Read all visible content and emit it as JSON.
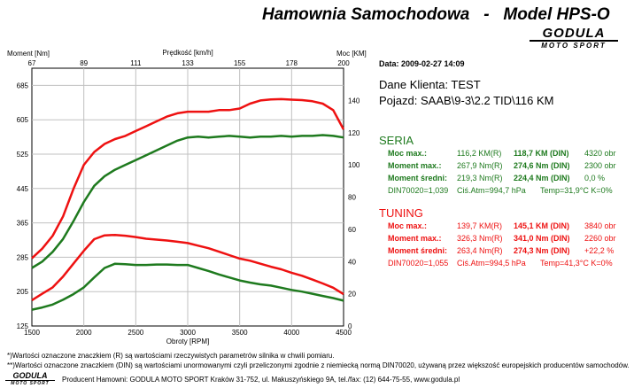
{
  "header": {
    "title": "Hamownia Samochodowa   -   Model HPS-O",
    "logo_main": "GODULA",
    "logo_sub": "MOTO SPORT"
  },
  "info": {
    "date": "Data: 2009-02-27  14:09",
    "client": "Dane Klienta: TEST",
    "vehicle": "Pojazd: SAAB\\9-3\\2.2 TID\\116 KM"
  },
  "colors": {
    "seria": "#1e7a1e",
    "tuning": "#ee1111",
    "grid": "#c0c0c0"
  },
  "seria": {
    "title": "SERIA",
    "rows": [
      {
        "label": "Moc max.:",
        "v1": "116,2 KM(R)",
        "v2": "118,7 KM (DIN)",
        "v3": "4320 obr"
      },
      {
        "label": "Moment max.:",
        "v1": "267,9 Nm(R)",
        "v2": "274,6 Nm (DIN)",
        "v3": "2300 obr"
      },
      {
        "label": "Moment średni:",
        "v1": "219,3 Nm(R)",
        "v2": "224,4 Nm (DIN)",
        "v3": "0,0 %"
      }
    ],
    "din_line": {
      "din": "DIN70020=1,039",
      "atm": "Ciś.Atm=994,7 hPa",
      "temp": "Temp=31,9°C  K=0%"
    }
  },
  "tuning": {
    "title": "TUNING",
    "rows": [
      {
        "label": "Moc max.:",
        "v1": "139,7 KM(R)",
        "v2": "145,1 KM (DIN)",
        "v3": "3840 obr"
      },
      {
        "label": "Moment max.:",
        "v1": "326,3 Nm(R)",
        "v2": "341,0 Nm (DIN)",
        "v3": "2260 obr"
      },
      {
        "label": "Moment średni:",
        "v1": "263,4 Nm(R)",
        "v2": "274,3 Nm (DIN)",
        "v3": "+22,2 %"
      }
    ],
    "din_line": {
      "din": "DIN70020=1,055",
      "atm": "Ciś.Atm=994,5 hPa",
      "temp": "Temp=41,3°C  K=0%"
    }
  },
  "notes": {
    "line1": "*)Wartości oznaczone znaczkiem (R) są wartościami rzeczywistych parametrów silnika w chwili pomiaru.",
    "line2": "**)Wartości oznaczone znaczkiem (DIN) są wartościami unormowanymi czyli przeliczonymi zgodnie z niemiecką normą DIN70020, używaną przez większość europejskich producentów samochodów."
  },
  "footer": {
    "logo_main": "GODULA",
    "logo_sub": "MOTO SPORT",
    "text": "Producent Hamowni: GODULA MOTO SPORT Kraków 31-752, ul. Makuszyńskiego 9A, tel./fax: (12) 644-75-55, www.godula.pl"
  },
  "chart_data": {
    "type": "line",
    "left_axis_title": "Moment [Nm]",
    "right_axis_title": "Moc [KM]",
    "top_axis_title": "Prędkość [km/h]",
    "bottom_axis_title": "Obroty [RPM]",
    "xlim": [
      1500,
      4500
    ],
    "ylim_left": [
      125,
      725
    ],
    "ylim_right": [
      0,
      160
    ],
    "x_ticks": [
      1500,
      2000,
      2500,
      3000,
      3500,
      4000,
      4500
    ],
    "left_ticks": [
      125,
      205,
      285,
      365,
      445,
      525,
      605,
      685
    ],
    "right_ticks": [
      0,
      20,
      40,
      60,
      80,
      100,
      120,
      140
    ],
    "top_ticks": [
      "67",
      "89",
      "111",
      "133",
      "155",
      "178",
      "200"
    ],
    "grid": true,
    "series": [
      {
        "name": "TUNING",
        "kind": "power",
        "axis": "right",
        "color": "#ee1111",
        "x": [
          1500,
          1600,
          1700,
          1800,
          1900,
          2000,
          2100,
          2200,
          2300,
          2400,
          2500,
          2600,
          2700,
          2800,
          2900,
          3000,
          3100,
          3200,
          3300,
          3400,
          3500,
          3600,
          3700,
          3800,
          3900,
          4000,
          4100,
          4200,
          4300,
          4400,
          4500
        ],
        "y": [
          42,
          48,
          56,
          68,
          85,
          100,
          108,
          113,
          116,
          118,
          121,
          124,
          127,
          130,
          132,
          133,
          133,
          133,
          134,
          134,
          135,
          138,
          140,
          140.6,
          140.8,
          140.5,
          140.2,
          139.5,
          138,
          134,
          122
        ]
      },
      {
        "name": "SERIA",
        "kind": "power",
        "axis": "right",
        "color": "#1e7a1e",
        "x": [
          1500,
          1600,
          1700,
          1800,
          1900,
          2000,
          2100,
          2200,
          2300,
          2400,
          2500,
          2600,
          2700,
          2800,
          2900,
          3000,
          3100,
          3200,
          3300,
          3400,
          3500,
          3600,
          3700,
          3800,
          3900,
          4000,
          4100,
          4200,
          4300,
          4400,
          4500
        ],
        "y": [
          36,
          40,
          46,
          54,
          65,
          77,
          87,
          93,
          97,
          100,
          103,
          106,
          109,
          112,
          115,
          117,
          117.5,
          117,
          117.5,
          118,
          117.5,
          117,
          117.5,
          117.5,
          118,
          117.5,
          118,
          118,
          118.5,
          118,
          117
        ]
      },
      {
        "name": "TUNING",
        "kind": "torque",
        "axis": "left",
        "color": "#ee1111",
        "x": [
          1500,
          1600,
          1700,
          1800,
          1900,
          2000,
          2100,
          2200,
          2300,
          2400,
          2500,
          2600,
          2700,
          2800,
          2900,
          3000,
          3100,
          3200,
          3300,
          3400,
          3500,
          3600,
          3700,
          3800,
          3900,
          4000,
          4100,
          4200,
          4300,
          4400,
          4500
        ],
        "y": [
          185,
          200,
          215,
          240,
          270,
          300,
          327,
          336,
          337,
          335,
          332,
          328,
          326,
          324,
          321,
          318,
          312,
          306,
          298,
          290,
          282,
          277,
          270,
          263,
          257,
          249,
          242,
          233,
          224,
          214,
          199
        ]
      },
      {
        "name": "SERIA",
        "kind": "torque",
        "axis": "left",
        "color": "#1e7a1e",
        "x": [
          1500,
          1600,
          1700,
          1800,
          1900,
          2000,
          2100,
          2200,
          2300,
          2400,
          2500,
          2600,
          2700,
          2800,
          2900,
          3000,
          3100,
          3200,
          3300,
          3400,
          3500,
          3600,
          3700,
          3800,
          3900,
          4000,
          4100,
          4200,
          4300,
          4400,
          4500
        ],
        "y": [
          163,
          168,
          175,
          186,
          199,
          215,
          238,
          260,
          270,
          269,
          267,
          267,
          268,
          268,
          267,
          267,
          260,
          253,
          245,
          238,
          231,
          226,
          222,
          219,
          214,
          209,
          205,
          200,
          195,
          190,
          184
        ]
      }
    ]
  }
}
